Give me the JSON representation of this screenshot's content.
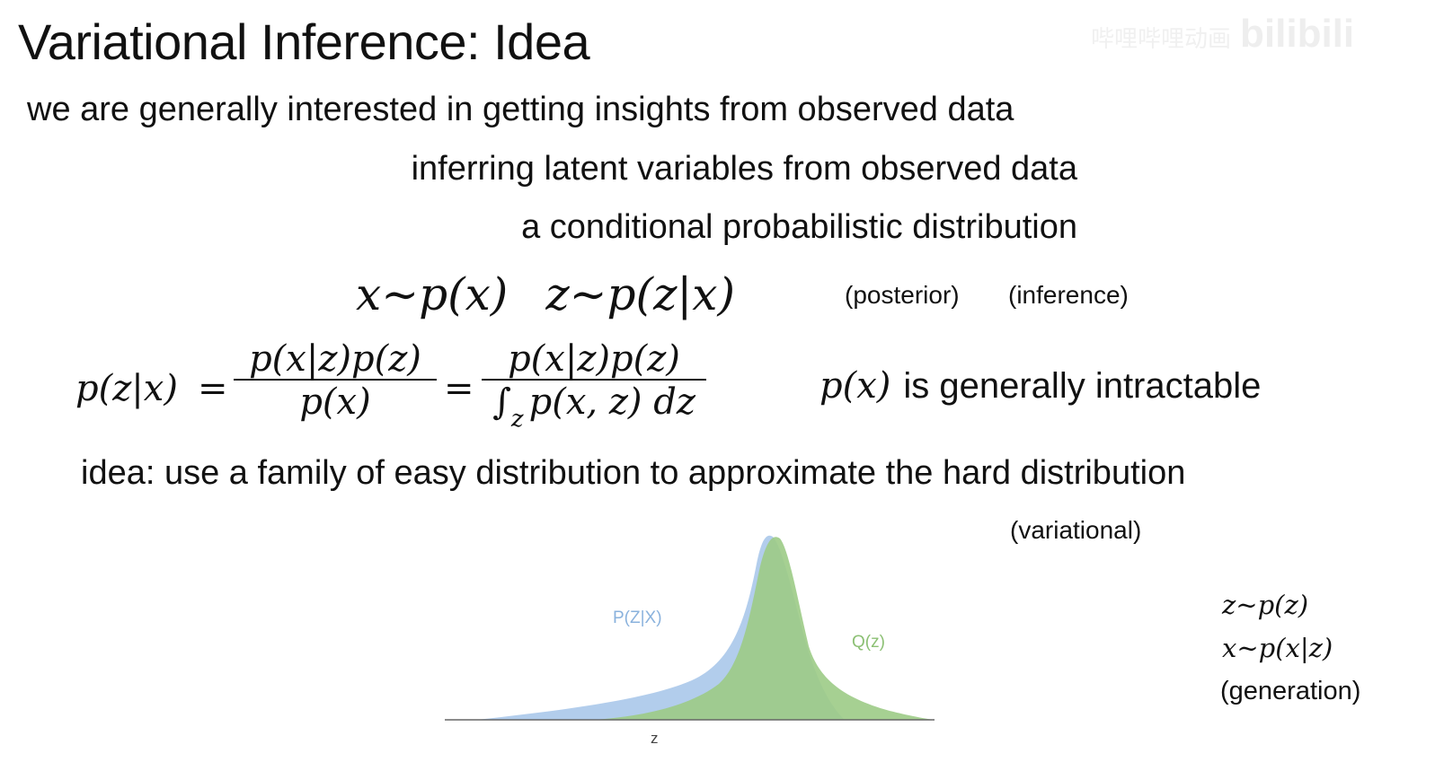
{
  "slide": {
    "title": "Variational Inference: Idea",
    "line1": "we are generally interested in getting insights from observed data",
    "line2": "inferring latent variables from observed data",
    "line3": "a conditional probabilistic distribution",
    "eq_prior": "x∼p(x)",
    "eq_posterior": "z∼p(z|x)",
    "label_posterior": "(posterior)",
    "label_inference": "(inference)",
    "bayes": {
      "lhs": "p(z|x)",
      "eq": "=",
      "frac1_num": "p(x|z)p(z)",
      "frac1_den": "p(x)",
      "frac2_num": "p(x|z)p(z)",
      "frac2_den_int": "∫",
      "frac2_den_sub": "z",
      "frac2_den_rest": "p(x, z) dz"
    },
    "intractable_px": "p(x)",
    "intractable_text": "is generally intractable",
    "idea": "idea: use a family of easy distribution to approximate the hard distribution",
    "label_variational": "(variational)",
    "gen_line1": "z∼p(z)",
    "gen_line2": "x∼p(x|z)",
    "gen_label": "(generation)",
    "watermark_text": "哔哩哔哩动画",
    "watermark_logo": "bilibili"
  },
  "chart_data": {
    "type": "area",
    "series": [
      {
        "name": "P(Z|X)",
        "color": "#aac8ea"
      },
      {
        "name": "Q(z)",
        "color": "#9ccb86"
      }
    ],
    "xlabel": "z",
    "ylabel": "",
    "grid": false,
    "legend": "inline labels"
  }
}
